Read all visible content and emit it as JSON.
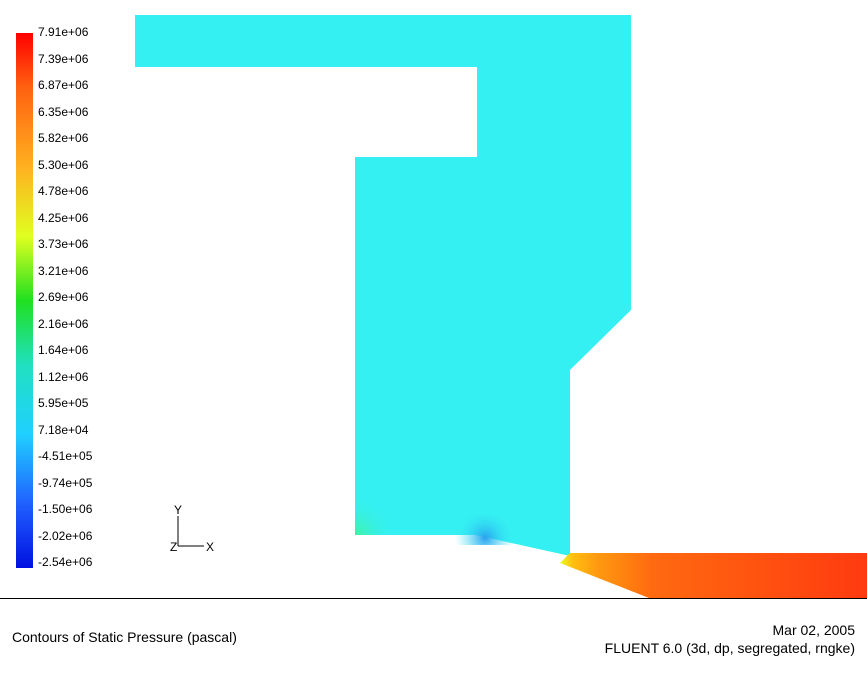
{
  "colorbar": {
    "labels": [
      "7.91e+06",
      "7.39e+06",
      "6.87e+06",
      "6.35e+06",
      "5.82e+06",
      "5.30e+06",
      "4.78e+06",
      "4.25e+06",
      "3.73e+06",
      "3.21e+06",
      "2.69e+06",
      "2.16e+06",
      "1.64e+06",
      "1.12e+06",
      "5.95e+05",
      "7.18e+04",
      "-4.51e+05",
      "-9.74e+05",
      "-1.50e+06",
      "-2.02e+06",
      "-2.54e+06"
    ]
  },
  "axes": {
    "y": "Y",
    "z": "Z",
    "x": "X"
  },
  "caption": {
    "title": "Contours of Static Pressure (pascal)",
    "date": "Mar 02, 2005",
    "solver": "FLUENT 6.0 (3d, dp, segregated, rngke)"
  },
  "colors": {
    "domain_fill": "#35f0f2",
    "outlet_high": "#ff3a10",
    "outlet_mid": "#ffa010"
  }
}
